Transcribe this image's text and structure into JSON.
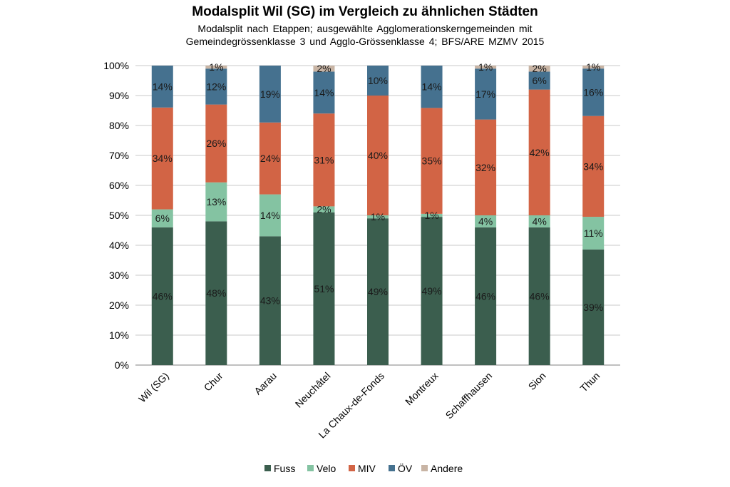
{
  "chart_data": {
    "type": "bar",
    "stacked": true,
    "title": "Modalsplit Wil (SG) im Vergleich zu ähnlichen Städten",
    "subtitle_lines": [
      "Modalsplit  nach Etappen;  ausgewählte  Agglomerationskerngemeinden  mit",
      "Gemeindegrössenklasse  3 und Agglo-Grössenklasse  4;  BFS/ARE MZMV 2015"
    ],
    "categories": [
      "Wil (SG)",
      "Chur",
      "Aarau",
      "Neuchâtel",
      "La Chaux-de-Fonds",
      "Montreux",
      "Schaffhausen",
      "Sion",
      "Thun"
    ],
    "series": [
      {
        "name": "Fuss",
        "color": "#3b5e4e",
        "values": [
          46,
          48,
          43,
          51,
          49,
          49,
          46,
          46,
          39
        ],
        "labels": [
          "46%",
          "48%",
          "43%",
          "51%",
          "49%",
          "49%",
          "46%",
          "46%",
          "39%"
        ]
      },
      {
        "name": "Velo",
        "color": "#84c3a2",
        "values": [
          6,
          13,
          14,
          2,
          1,
          1,
          4,
          4,
          11
        ],
        "labels": [
          "6%",
          "13%",
          "14%",
          "2%",
          "1%",
          "1%",
          "4%",
          "4%",
          "11%"
        ]
      },
      {
        "name": "MIV",
        "color": "#d26445",
        "values": [
          34,
          26,
          24,
          31,
          40,
          35,
          32,
          42,
          34
        ],
        "labels": [
          "34%",
          "26%",
          "24%",
          "31%",
          "40%",
          "35%",
          "32%",
          "42%",
          "34%"
        ]
      },
      {
        "name": "ÖV",
        "color": "#45718f",
        "values": [
          14,
          12,
          19,
          14,
          10,
          14,
          17,
          6,
          16
        ],
        "labels": [
          "14%",
          "12%",
          "19%",
          "14%",
          "10%",
          "14%",
          "17%",
          "6%",
          "16%"
        ]
      },
      {
        "name": "Andere",
        "color": "#c8b4a4",
        "values": [
          0,
          1,
          0,
          2,
          0,
          0,
          1,
          2,
          1
        ],
        "labels": [
          "",
          "1%",
          "",
          "2%",
          "",
          "",
          "1%",
          "2%",
          "1%"
        ]
      }
    ],
    "yticks": [
      "0%",
      "10%",
      "20%",
      "30%",
      "40%",
      "50%",
      "60%",
      "70%",
      "80%",
      "90%",
      "100%"
    ],
    "ylim": [
      0,
      100
    ],
    "grid": true,
    "legend_position": "bottom"
  }
}
